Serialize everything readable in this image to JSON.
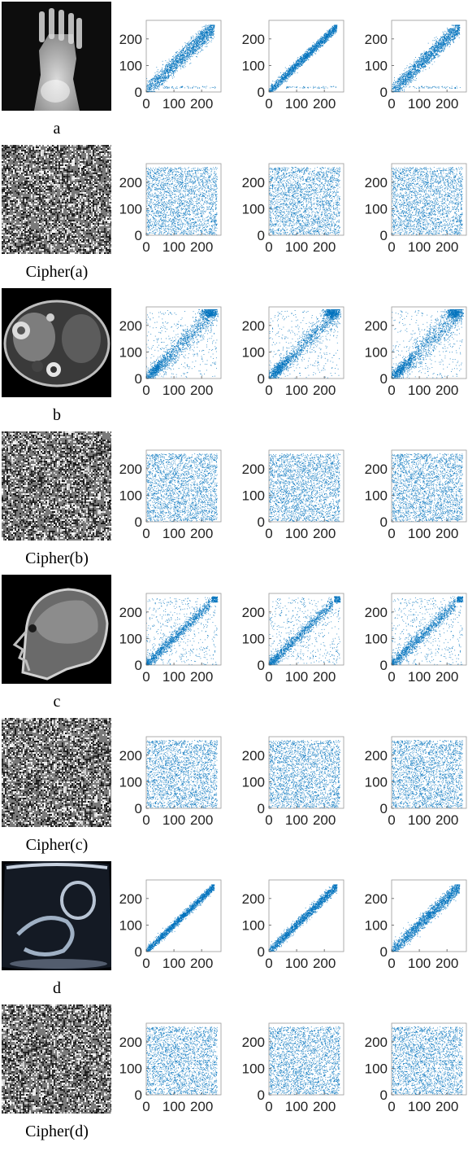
{
  "figure": {
    "rows": [
      {
        "caption": "a",
        "kind": "original",
        "modality": "x-ray-foot",
        "plots": [
          {
            "pattern": "diag",
            "spread": 18,
            "band": 30,
            "outliers": true
          },
          {
            "pattern": "diag",
            "spread": 9,
            "band": 18,
            "outliers": true
          },
          {
            "pattern": "diag",
            "spread": 16,
            "band": 28,
            "outliers": true
          }
        ]
      },
      {
        "caption": "Cipher(a)",
        "kind": "cipher",
        "plots": [
          {
            "pattern": "uniform"
          },
          {
            "pattern": "uniform"
          },
          {
            "pattern": "uniform"
          }
        ]
      },
      {
        "caption": "b",
        "kind": "original",
        "modality": "ct-abdomen",
        "plots": [
          {
            "pattern": "blob",
            "spread": 22
          },
          {
            "pattern": "blob",
            "spread": 20
          },
          {
            "pattern": "blob",
            "spread": 26
          }
        ]
      },
      {
        "caption": "Cipher(b)",
        "kind": "cipher",
        "plots": [
          {
            "pattern": "uniform"
          },
          {
            "pattern": "uniform"
          },
          {
            "pattern": "uniform"
          }
        ]
      },
      {
        "caption": "c",
        "kind": "original",
        "modality": "mri-head",
        "plots": [
          {
            "pattern": "mri",
            "spread": 12
          },
          {
            "pattern": "mri",
            "spread": 12
          },
          {
            "pattern": "mri",
            "spread": 14
          }
        ]
      },
      {
        "caption": "Cipher(c)",
        "kind": "cipher",
        "plots": [
          {
            "pattern": "uniform"
          },
          {
            "pattern": "uniform"
          },
          {
            "pattern": "uniform"
          }
        ]
      },
      {
        "caption": "d",
        "kind": "original",
        "modality": "ultrasound",
        "plots": [
          {
            "pattern": "diag",
            "spread": 8,
            "band": 12,
            "outliers": false
          },
          {
            "pattern": "diag",
            "spread": 10,
            "band": 16,
            "outliers": false
          },
          {
            "pattern": "diag",
            "spread": 14,
            "band": 22,
            "outliers": false
          }
        ]
      },
      {
        "caption": "Cipher(d)",
        "kind": "cipher",
        "plots": [
          {
            "pattern": "uniform"
          },
          {
            "pattern": "uniform"
          },
          {
            "pattern": "uniform"
          }
        ]
      }
    ]
  },
  "chart_data": {
    "type": "scatter",
    "xticks": [
      "0",
      "100",
      "200"
    ],
    "yticks": [
      "0",
      "100",
      "200"
    ],
    "xlim": [
      0,
      270
    ],
    "ylim": [
      0,
      270
    ],
    "marker_color": "#0072BD",
    "grid": false
  }
}
